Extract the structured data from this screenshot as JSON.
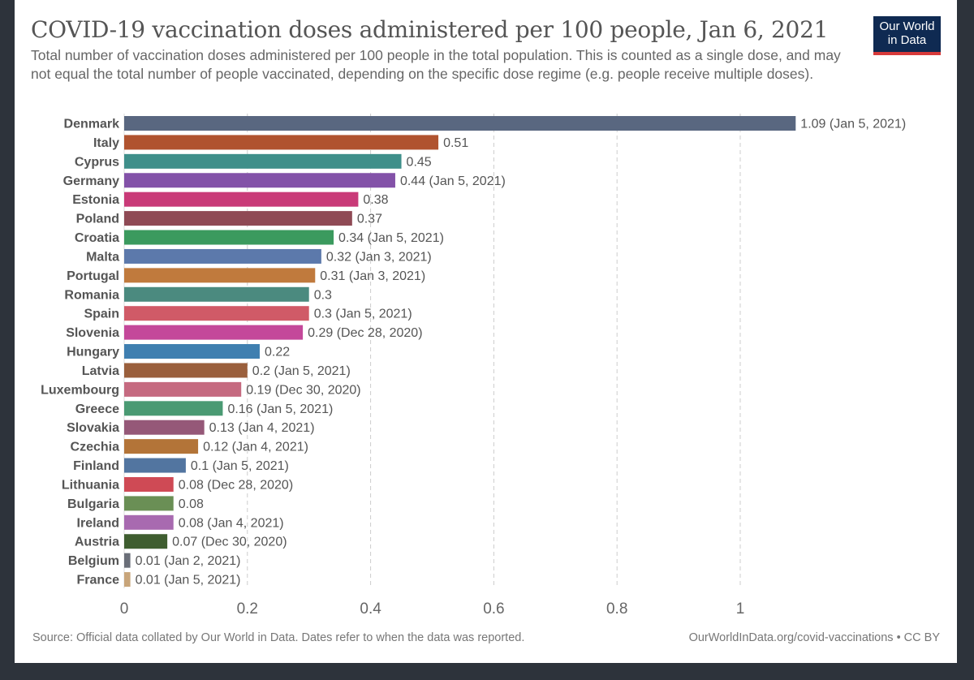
{
  "chart_data": {
    "type": "bar",
    "orientation": "horizontal",
    "title": "COVID-19 vaccination doses administered per 100 people, Jan 6, 2021",
    "subtitle": "Total number of vaccination doses administered per 100 people in the total population. This is counted as a single dose, and may not equal the total number of people vaccinated, depending on the specific dose regime (e.g. people receive multiple doses).",
    "categories": [
      "Denmark",
      "Italy",
      "Cyprus",
      "Germany",
      "Estonia",
      "Poland",
      "Croatia",
      "Malta",
      "Portugal",
      "Romania",
      "Spain",
      "Slovenia",
      "Hungary",
      "Latvia",
      "Luxembourg",
      "Greece",
      "Slovakia",
      "Czechia",
      "Finland",
      "Lithuania",
      "Bulgaria",
      "Ireland",
      "Austria",
      "Belgium",
      "France"
    ],
    "values": [
      1.09,
      0.51,
      0.45,
      0.44,
      0.38,
      0.37,
      0.34,
      0.32,
      0.31,
      0.3,
      0.3,
      0.29,
      0.22,
      0.2,
      0.19,
      0.16,
      0.13,
      0.12,
      0.1,
      0.08,
      0.08,
      0.08,
      0.07,
      0.01,
      0.01
    ],
    "data_labels": [
      "1.09 (Jan 5, 2021)",
      "0.51",
      "0.45",
      "0.44 (Jan 5, 2021)",
      "0.38",
      "0.37",
      "0.34 (Jan 5, 2021)",
      "0.32 (Jan 3, 2021)",
      "0.31 (Jan 3, 2021)",
      "0.3",
      "0.3 (Jan 5, 2021)",
      "0.29 (Dec 28, 2020)",
      "0.22",
      "0.2 (Jan 5, 2021)",
      "0.19 (Dec 30, 2020)",
      "0.16 (Jan 5, 2021)",
      "0.13 (Jan 4, 2021)",
      "0.12 (Jan 4, 2021)",
      "0.1 (Jan 5, 2021)",
      "0.08 (Dec 28, 2020)",
      "0.08",
      "0.08 (Jan 4, 2021)",
      "0.07 (Dec 30, 2020)",
      "0.01 (Jan 2, 2021)",
      "0.01 (Jan 5, 2021)"
    ],
    "colors": [
      "#596780",
      "#b0532f",
      "#3f8f8a",
      "#8352a8",
      "#c93a78",
      "#8f4a55",
      "#3b9a5e",
      "#5c79ab",
      "#c07a3d",
      "#4b8a7f",
      "#d05a67",
      "#c4489a",
      "#3f7fb0",
      "#9a5f3c",
      "#c56a80",
      "#4a9a73",
      "#955878",
      "#b37438",
      "#5275a0",
      "#cf4a55",
      "#6a8f55",
      "#a86ab0",
      "#3f5e30",
      "#6a6e78",
      "#c8a57a"
    ],
    "xticks": [
      0,
      0.2,
      0.4,
      0.6,
      0.8,
      1
    ],
    "xtick_labels": [
      "0",
      "0.2",
      "0.4",
      "0.6",
      "0.8",
      "1"
    ],
    "xlim": [
      0,
      1.09
    ],
    "grid": "vertical dashed",
    "xlabel": "",
    "ylabel": ""
  },
  "logo": {
    "line1": "Our World",
    "line2": "in Data"
  },
  "footer": {
    "source": "Source: Official data collated by Our World in Data. Dates refer to when the data was reported.",
    "license": "OurWorldInData.org/covid-vaccinations • CC BY"
  }
}
